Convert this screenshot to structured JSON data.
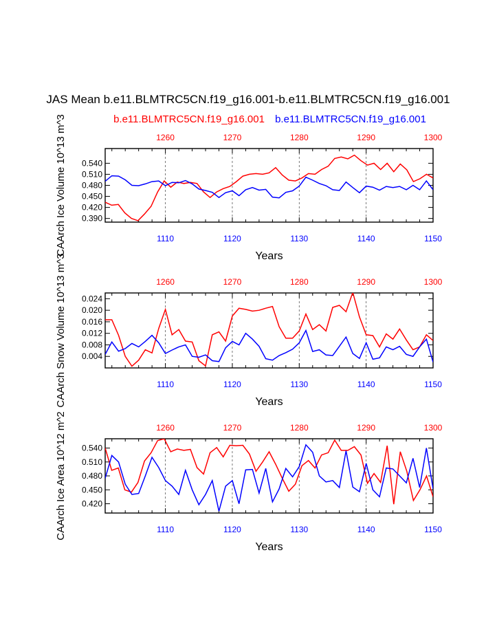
{
  "figure": {
    "title": "JAS Mean b.e11.BLMTRC5CN.f19_g16.001-b.e11.BLMTRC5CN.f19_g16.001",
    "legend_left": "b.e11.BLMTRC5CN.f19_g16.001",
    "legend_right": "b.e11.BLMTRC5CN.f19_g16.001",
    "colors": {
      "left_case": "#ff0000",
      "right_case": "#0000ff",
      "axis": "#000000",
      "grid": "#555555"
    }
  },
  "chart_data": [
    {
      "type": "line",
      "name": "ice-volume",
      "ylabel": "CAArch Ice Volume 10^13 m^3",
      "xlabel": "Years",
      "ylim": [
        0.38,
        0.58
      ],
      "yticks": [
        0.39,
        0.42,
        0.45,
        0.48,
        0.51,
        0.54
      ],
      "ytick_labels": [
        "0.390",
        "0.420",
        "0.450",
        "0.480",
        "0.510",
        "0.540"
      ],
      "bottom_axis": {
        "range": [
          1101,
          1150
        ],
        "ticks": [
          1110,
          1120,
          1130,
          1140,
          1150
        ],
        "labels": [
          "1110",
          "1120",
          "1130",
          "1140",
          "1150"
        ]
      },
      "top_axis": {
        "range": [
          1251,
          1300
        ],
        "ticks": [
          1260,
          1270,
          1280,
          1290,
          1300
        ],
        "labels": [
          "1260",
          "1270",
          "1280",
          "1290",
          "1300"
        ]
      },
      "grid_x": [
        1110,
        1120,
        1130,
        1140
      ],
      "series": [
        {
          "name": "b.e11.BLMTRC5CN.f19_g16.001 (1251-1300)",
          "color": "#ff0000",
          "values": [
            0.434,
            0.426,
            0.428,
            0.405,
            0.39,
            0.384,
            0.402,
            0.423,
            0.462,
            0.492,
            0.475,
            0.489,
            0.485,
            0.488,
            0.485,
            0.462,
            0.447,
            0.462,
            0.471,
            0.477,
            0.49,
            0.505,
            0.51,
            0.512,
            0.51,
            0.514,
            0.528,
            0.508,
            0.494,
            0.492,
            0.5,
            0.512,
            0.51,
            0.523,
            0.532,
            0.553,
            0.557,
            0.552,
            0.562,
            0.547,
            0.535,
            0.54,
            0.523,
            0.54,
            0.517,
            0.538,
            0.522,
            0.49,
            0.498,
            0.51,
            0.5
          ]
        },
        {
          "name": "b.e11.BLMTRC5CN.f19_g16.001 (1101-1150)",
          "color": "#0000ff",
          "values": [
            0.491,
            0.506,
            0.505,
            0.495,
            0.48,
            0.479,
            0.484,
            0.49,
            0.492,
            0.479,
            0.488,
            0.487,
            0.493,
            0.484,
            0.47,
            0.466,
            0.461,
            0.447,
            0.46,
            0.465,
            0.452,
            0.468,
            0.474,
            0.467,
            0.469,
            0.448,
            0.446,
            0.461,
            0.465,
            0.478,
            0.502,
            0.494,
            0.485,
            0.479,
            0.468,
            0.466,
            0.489,
            0.474,
            0.46,
            0.478,
            0.475,
            0.467,
            0.477,
            0.474,
            0.477,
            0.468,
            0.48,
            0.468,
            0.492,
            0.468
          ]
        }
      ]
    },
    {
      "type": "line",
      "name": "snow-volume",
      "ylabel": "CAArch Snow Volume 10^13 m^3",
      "xlabel": "Years",
      "ylim": [
        0.0,
        0.026
      ],
      "yticks": [
        0.004,
        0.008,
        0.012,
        0.016,
        0.02,
        0.024
      ],
      "ytick_labels": [
        "0.004",
        "0.008",
        "0.012",
        "0.016",
        "0.020",
        "0.024"
      ],
      "bottom_axis": {
        "range": [
          1101,
          1150
        ],
        "ticks": [
          1110,
          1120,
          1130,
          1140,
          1150
        ],
        "labels": [
          "1110",
          "1120",
          "1130",
          "1140",
          "1150"
        ]
      },
      "top_axis": {
        "range": [
          1251,
          1300
        ],
        "ticks": [
          1260,
          1270,
          1280,
          1290,
          1300
        ],
        "labels": [
          "1260",
          "1270",
          "1280",
          "1290",
          "1300"
        ]
      },
      "grid_x": [
        1110,
        1120,
        1130,
        1140
      ],
      "series": [
        {
          "name": "b.e11.BLMTRC5CN.f19_g16.001 (1251-1300)",
          "color": "#ff0000",
          "values": [
            0.0167,
            0.0167,
            0.0113,
            0.004,
            0.0006,
            0.0027,
            0.0063,
            0.0052,
            0.0137,
            0.0203,
            0.0115,
            0.0133,
            0.0093,
            0.009,
            0.0025,
            0.0007,
            0.0115,
            0.0125,
            0.0093,
            0.018,
            0.0207,
            0.0203,
            0.0197,
            0.02,
            0.0207,
            0.0213,
            0.0143,
            0.0103,
            0.0103,
            0.0128,
            0.0187,
            0.0133,
            0.015,
            0.0128,
            0.021,
            0.0217,
            0.0195,
            0.0262,
            0.0177,
            0.0115,
            0.0112,
            0.0073,
            0.0118,
            0.01,
            0.0135,
            0.0097,
            0.0063,
            0.0073,
            0.0115,
            0.0095
          ]
        },
        {
          "name": "b.e11.BLMTRC5CN.f19_g16.001 (1101-1150)",
          "color": "#0000ff",
          "values": [
            0.0047,
            0.009,
            0.0058,
            0.0067,
            0.0085,
            0.0073,
            0.0092,
            0.0113,
            0.0087,
            0.005,
            0.0062,
            0.0073,
            0.008,
            0.004,
            0.0037,
            0.0045,
            0.0025,
            0.0022,
            0.007,
            0.0092,
            0.008,
            0.012,
            0.01,
            0.0075,
            0.0032,
            0.0027,
            0.0043,
            0.0053,
            0.0065,
            0.0087,
            0.013,
            0.0057,
            0.0063,
            0.0045,
            0.0043,
            0.0075,
            0.0107,
            0.005,
            0.0033,
            0.0087,
            0.003,
            0.0035,
            0.0073,
            0.0063,
            0.0075,
            0.0047,
            0.004,
            0.0073,
            0.01,
            0.002
          ]
        }
      ]
    },
    {
      "type": "line",
      "name": "ice-area",
      "ylabel": "CAArch Ice Area 10^12 m^2",
      "xlabel": "Years",
      "ylim": [
        0.4,
        0.56
      ],
      "yticks": [
        0.42,
        0.45,
        0.48,
        0.51,
        0.54
      ],
      "ytick_labels": [
        "0.420",
        "0.450",
        "0.480",
        "0.510",
        "0.540"
      ],
      "bottom_axis": {
        "range": [
          1101,
          1150
        ],
        "ticks": [
          1110,
          1120,
          1130,
          1140,
          1150
        ],
        "labels": [
          "1110",
          "1120",
          "1130",
          "1140",
          "1150"
        ]
      },
      "top_axis": {
        "range": [
          1251,
          1300
        ],
        "ticks": [
          1260,
          1270,
          1280,
          1290,
          1300
        ],
        "labels": [
          "1260",
          "1270",
          "1280",
          "1290",
          "1300"
        ]
      },
      "grid_x": [
        1110,
        1120,
        1130,
        1140
      ],
      "series": [
        {
          "name": "b.e11.BLMTRC5CN.f19_g16.001 (1251-1300)",
          "color": "#ff0000",
          "values": [
            0.54,
            0.492,
            0.497,
            0.45,
            0.445,
            0.466,
            0.512,
            0.53,
            0.556,
            0.56,
            0.532,
            0.538,
            0.535,
            0.537,
            0.498,
            0.484,
            0.53,
            0.541,
            0.521,
            0.546,
            0.545,
            0.546,
            0.527,
            0.49,
            0.51,
            0.532,
            0.505,
            0.475,
            0.447,
            0.462,
            0.502,
            0.513,
            0.497,
            0.525,
            0.53,
            0.557,
            0.535,
            0.535,
            0.543,
            0.525,
            0.464,
            0.485,
            0.466,
            0.545,
            0.419,
            0.532,
            0.49,
            0.427,
            0.45,
            0.48,
            0.435
          ]
        },
        {
          "name": "b.e11.BLMTRC5CN.f19_g16.001 (1101-1150)",
          "color": "#0000ff",
          "values": [
            0.475,
            0.524,
            0.51,
            0.462,
            0.44,
            0.442,
            0.48,
            0.52,
            0.498,
            0.47,
            0.458,
            0.44,
            0.492,
            0.45,
            0.418,
            0.44,
            0.47,
            0.404,
            0.458,
            0.47,
            0.42,
            0.493,
            0.494,
            0.443,
            0.496,
            0.424,
            0.452,
            0.496,
            0.478,
            0.5,
            0.547,
            0.531,
            0.48,
            0.467,
            0.47,
            0.455,
            0.534,
            0.456,
            0.446,
            0.507,
            0.45,
            0.435,
            0.497,
            0.495,
            0.48,
            0.465,
            0.518,
            0.455,
            0.54,
            0.452
          ]
        }
      ]
    }
  ]
}
